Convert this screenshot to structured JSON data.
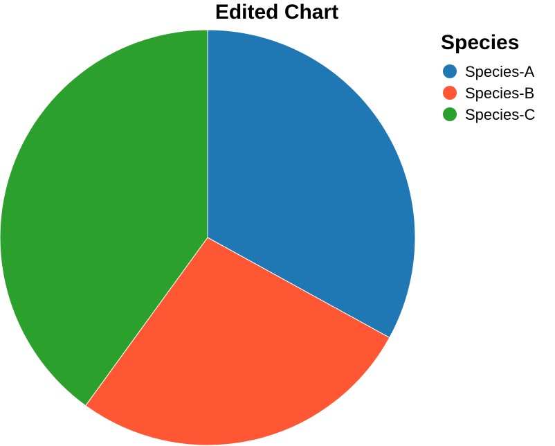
{
  "chart_data": {
    "type": "pie",
    "title": "Edited Chart",
    "legend_title": "Species",
    "legend_position": "top-right",
    "categories": [
      "Species-A",
      "Species-B",
      "Species-C"
    ],
    "values": [
      33,
      27,
      40
    ],
    "colors": [
      "#1f77b4",
      "#ff5733",
      "#2ca02c"
    ],
    "start_angle_deg": 0,
    "direction": "clockwise"
  }
}
